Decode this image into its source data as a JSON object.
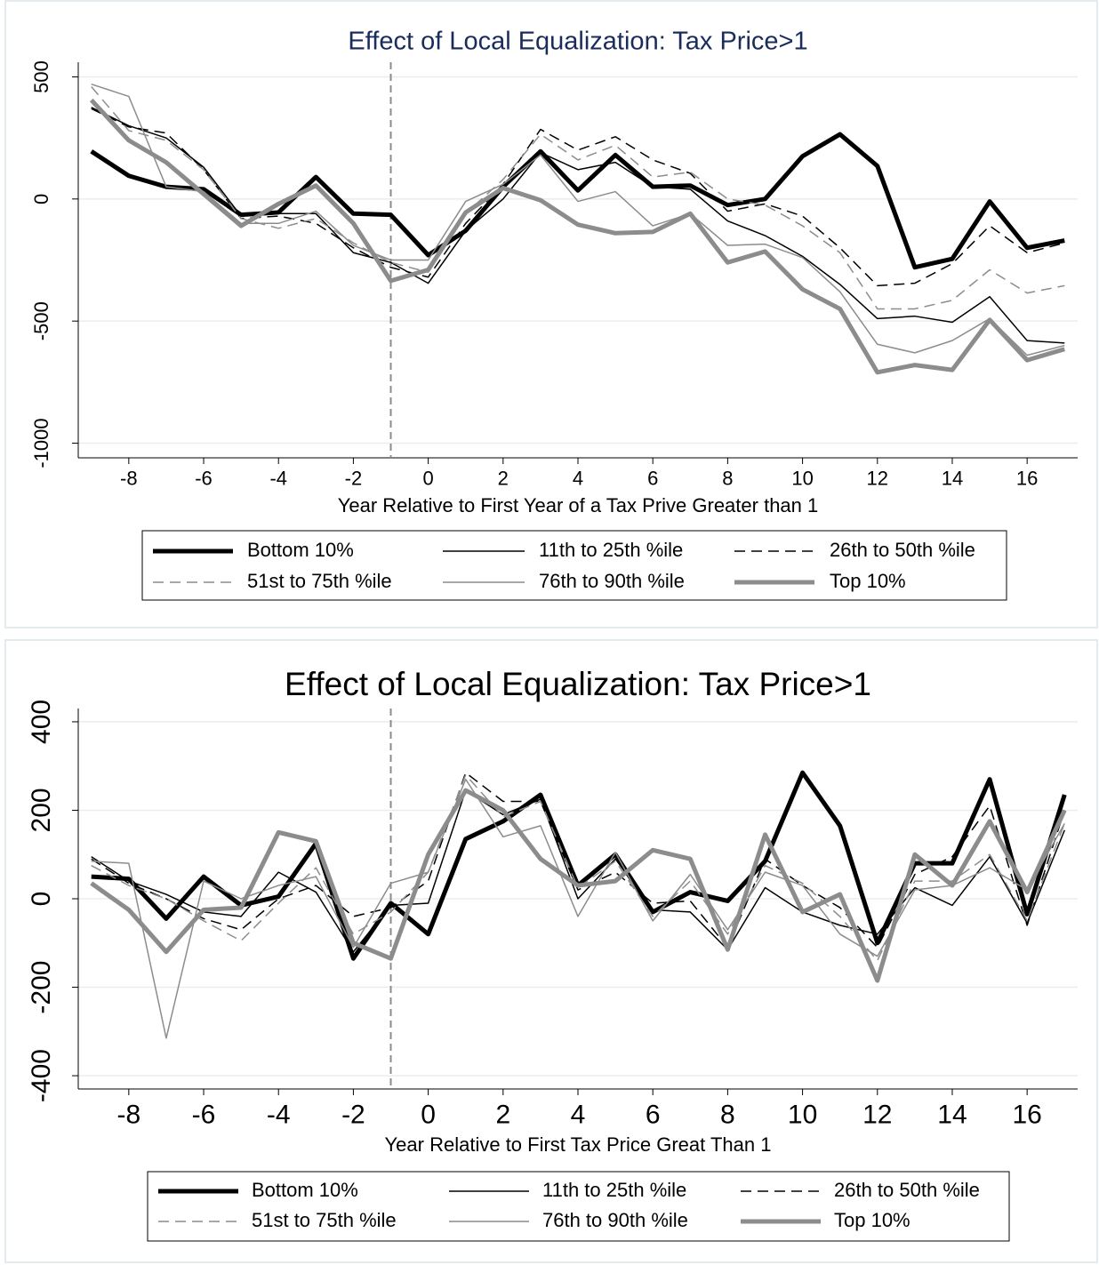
{
  "chart_data": [
    {
      "type": "line",
      "title": "Effect of Local Equalization: Tax Price>1",
      "xlabel": "Year Relative to First Year of a Tax Prive Greater than 1",
      "x": [
        -9,
        -8,
        -7,
        -6,
        -5,
        -4,
        -3,
        -2,
        -1,
        0,
        1,
        2,
        3,
        4,
        5,
        6,
        7,
        8,
        9,
        10,
        11,
        12,
        13,
        14,
        15,
        16,
        17
      ],
      "xlim": [
        -9.35,
        17.35
      ],
      "xticks": [
        -8,
        -6,
        -4,
        -2,
        0,
        2,
        4,
        6,
        8,
        10,
        12,
        14,
        16
      ],
      "ylim": [
        -1060,
        560
      ],
      "yticks": [
        -1000,
        -500,
        0,
        500
      ],
      "grid": true,
      "vline": -1,
      "title_color": "#1a2c5b",
      "series": [
        {
          "name": "Bottom 10%",
          "color": "#000000",
          "linewidth": 5,
          "dash": false,
          "values": [
            195,
            95,
            50,
            40,
            -65,
            -55,
            90,
            -60,
            -65,
            -230,
            -130,
            50,
            195,
            35,
            180,
            50,
            55,
            -25,
            0,
            175,
            265,
            135,
            -280,
            -245,
            -10,
            -200,
            -170
          ]
        },
        {
          "name": "11th to 25th %ile",
          "color": "#000000",
          "linewidth": 1.5,
          "dash": false,
          "values": [
            375,
            300,
            250,
            130,
            -70,
            -60,
            -60,
            -220,
            -260,
            -345,
            -130,
            0,
            190,
            120,
            150,
            50,
            40,
            -90,
            -150,
            -235,
            -350,
            -490,
            -480,
            -505,
            -400,
            -580,
            -590
          ]
        },
        {
          "name": "26th to 50th %ile",
          "color": "#000000",
          "linewidth": 1.5,
          "dash": true,
          "values": [
            370,
            295,
            270,
            120,
            -80,
            -70,
            -100,
            -200,
            -280,
            -320,
            -100,
            60,
            285,
            200,
            255,
            160,
            105,
            -50,
            -20,
            -70,
            -200,
            -355,
            -345,
            -265,
            -110,
            -220,
            -180
          ]
        },
        {
          "name": "51st to 75th %ile",
          "color": "#8c8c8c",
          "linewidth": 1.5,
          "dash": true,
          "values": [
            460,
            280,
            240,
            120,
            -80,
            -120,
            -80,
            -180,
            -260,
            -300,
            -60,
            80,
            265,
            160,
            220,
            90,
            110,
            0,
            -25,
            -110,
            -220,
            -450,
            -450,
            -415,
            -290,
            -385,
            -355
          ]
        },
        {
          "name": "76th to 90th %ile",
          "color": "#8c8c8c",
          "linewidth": 1.5,
          "dash": false,
          "values": [
            470,
            420,
            50,
            30,
            -100,
            -100,
            -50,
            -190,
            -250,
            -250,
            -10,
            60,
            180,
            -10,
            30,
            -110,
            -60,
            -190,
            -185,
            -240,
            -380,
            -595,
            -630,
            -580,
            -490,
            -640,
            -600
          ]
        },
        {
          "name": "Top 10%",
          "color": "#8c8c8c",
          "linewidth": 5,
          "dash": false,
          "values": [
            405,
            240,
            150,
            20,
            -110,
            -20,
            55,
            -100,
            -335,
            -290,
            -55,
            45,
            -5,
            -105,
            -140,
            -135,
            -60,
            -260,
            -215,
            -370,
            -450,
            -710,
            -680,
            -700,
            -495,
            -660,
            -615
          ]
        }
      ]
    },
    {
      "type": "line",
      "title": "Effect of Local Equalization: Tax Price>1",
      "xlabel": "Year Relative to First Tax Price Great Than 1",
      "x": [
        -9,
        -8,
        -7,
        -6,
        -5,
        -4,
        -3,
        -2,
        -1,
        0,
        1,
        2,
        3,
        4,
        5,
        6,
        7,
        8,
        9,
        10,
        11,
        12,
        13,
        14,
        15,
        16,
        17
      ],
      "xlim": [
        -9.35,
        17.35
      ],
      "xticks": [
        -8,
        -6,
        -4,
        -2,
        0,
        2,
        4,
        6,
        8,
        10,
        12,
        14,
        16
      ],
      "ylim": [
        -430,
        430
      ],
      "yticks": [
        -400,
        -200,
        0,
        200,
        400
      ],
      "grid": true,
      "vline": -1,
      "title_color": "#000000",
      "series": [
        {
          "name": "Bottom 10%",
          "color": "#000000",
          "linewidth": 5,
          "dash": false,
          "values": [
            50,
            45,
            -45,
            50,
            -15,
            5,
            125,
            -135,
            -10,
            -80,
            135,
            175,
            235,
            30,
            100,
            -30,
            15,
            -5,
            85,
            285,
            165,
            -100,
            80,
            80,
            270,
            -35,
            235
          ]
        },
        {
          "name": "11th to 25th %ile",
          "color": "#000000",
          "linewidth": 1.5,
          "dash": false,
          "values": [
            95,
            40,
            10,
            -30,
            -40,
            60,
            15,
            -120,
            -15,
            -10,
            245,
            190,
            225,
            0,
            90,
            -25,
            -30,
            -115,
            25,
            -30,
            -60,
            -80,
            25,
            -15,
            95,
            -55,
            155
          ]
        },
        {
          "name": "26th to 50th %ile",
          "color": "#000000",
          "linewidth": 1.5,
          "dash": true,
          "values": [
            90,
            35,
            0,
            -45,
            -70,
            0,
            30,
            -40,
            -20,
            40,
            285,
            220,
            220,
            20,
            60,
            -10,
            -5,
            -110,
            90,
            30,
            -20,
            -110,
            55,
            95,
            210,
            -60,
            200
          ]
        },
        {
          "name": "51st to 75th %ile",
          "color": "#8c8c8c",
          "linewidth": 1.5,
          "dash": true,
          "values": [
            75,
            30,
            0,
            -50,
            -95,
            -10,
            70,
            -80,
            -30,
            60,
            280,
            185,
            220,
            25,
            85,
            -40,
            40,
            -80,
            75,
            35,
            -40,
            -140,
            40,
            40,
            100,
            -50,
            170
          ]
        },
        {
          "name": "76th to 90th %ile",
          "color": "#8c8c8c",
          "linewidth": 1.5,
          "dash": false,
          "values": [
            85,
            80,
            -315,
            40,
            0,
            30,
            50,
            -110,
            35,
            60,
            270,
            140,
            165,
            -40,
            105,
            -50,
            55,
            -70,
            60,
            30,
            -80,
            -130,
            20,
            30,
            70,
            20,
            170
          ]
        },
        {
          "name": "Top 10%",
          "color": "#8c8c8c",
          "linewidth": 5,
          "dash": false,
          "values": [
            35,
            -25,
            -120,
            -25,
            -20,
            150,
            130,
            -100,
            -135,
            100,
            245,
            200,
            90,
            30,
            40,
            110,
            90,
            -115,
            145,
            -30,
            10,
            -185,
            100,
            30,
            175,
            15,
            200
          ]
        }
      ]
    }
  ]
}
